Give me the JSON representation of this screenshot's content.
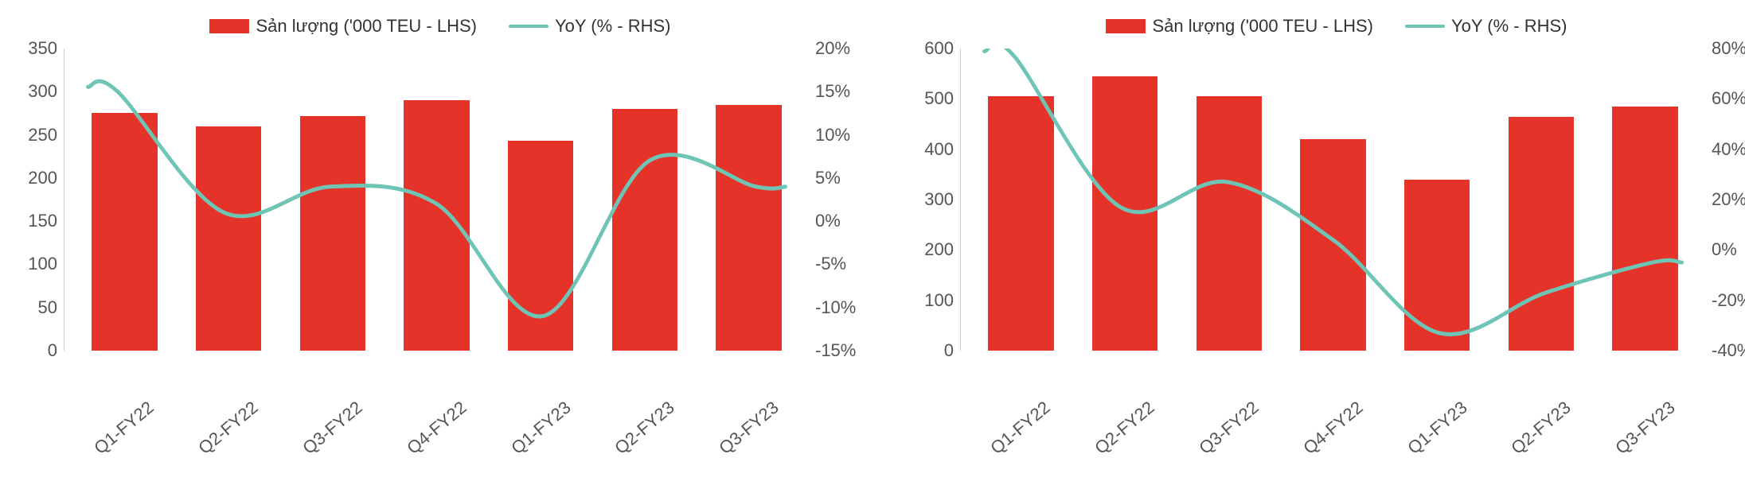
{
  "colors": {
    "bar": "#e63329",
    "line": "#6fc5b5",
    "text": "#555555",
    "background": "#ffffff"
  },
  "typography": {
    "axis_fontsize": 22,
    "legend_fontsize": 22,
    "font_family": "Arial, sans-serif"
  },
  "legend": {
    "bar_label": "Sản lượng ('000 TEU - LHS)",
    "line_label": "YoY (% - RHS)"
  },
  "chart_left": {
    "type": "bar+line",
    "categories": [
      "Q1-FY22",
      "Q2-FY22",
      "Q3-FY22",
      "Q4-FY22",
      "Q1-FY23",
      "Q2-FY23",
      "Q3-FY23"
    ],
    "bar_values": [
      275,
      260,
      272,
      290,
      243,
      280,
      285
    ],
    "line_values": [
      15,
      1,
      4,
      2,
      -11,
      7,
      4
    ],
    "y_left": {
      "min": 0,
      "max": 350,
      "step": 50,
      "ticks": [
        0,
        50,
        100,
        150,
        200,
        250,
        300,
        350
      ]
    },
    "y_right": {
      "min": -15,
      "max": 20,
      "step": 5,
      "ticks": [
        -15,
        -10,
        -5,
        0,
        5,
        10,
        15,
        20
      ],
      "suffix": "%"
    },
    "bar_color": "#e63329",
    "line_color": "#6fc5b5",
    "line_width": 5,
    "bar_width_pct": 9
  },
  "chart_right": {
    "type": "bar+line",
    "categories": [
      "Q1-FY22",
      "Q2-FY22",
      "Q3-FY22",
      "Q4-FY22",
      "Q1-FY23",
      "Q2-FY23",
      "Q3-FY23"
    ],
    "bar_values": [
      505,
      545,
      505,
      420,
      340,
      465,
      485
    ],
    "line_values": [
      77,
      17,
      27,
      4,
      -33,
      -17,
      -5
    ],
    "y_left": {
      "min": 0,
      "max": 600,
      "step": 100,
      "ticks": [
        0,
        100,
        200,
        300,
        400,
        500,
        600
      ]
    },
    "y_right": {
      "min": -40,
      "max": 80,
      "step": 20,
      "ticks": [
        -40,
        -20,
        0,
        20,
        40,
        60,
        80
      ],
      "suffix": "%"
    },
    "bar_color": "#e63329",
    "line_color": "#6fc5b5",
    "line_width": 5,
    "bar_width_pct": 9
  }
}
